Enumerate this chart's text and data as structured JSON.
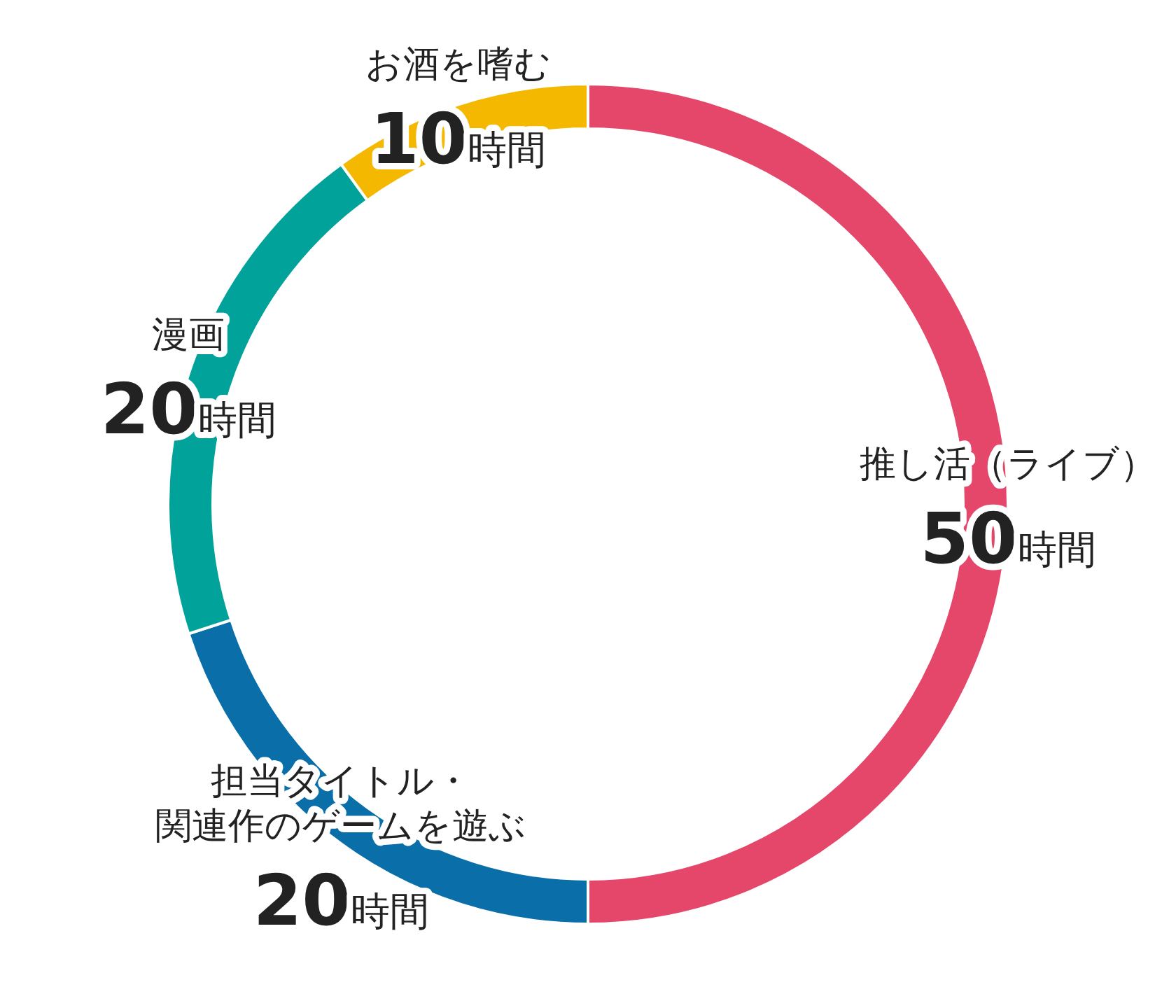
{
  "chart_data": {
    "type": "donut",
    "categories": [
      "推し活（ライブ）",
      "担当タイトル・関連作のゲームを遊ぶ",
      "漫画",
      "お酒を嗜む"
    ],
    "values": [
      50,
      20,
      20,
      10
    ],
    "colors": [
      "#e5476a",
      "#0a6fa8",
      "#00a29a",
      "#f5b800"
    ],
    "value_labels": [
      "50時間",
      "20時間",
      "20時間",
      "10時間"
    ]
  }
}
